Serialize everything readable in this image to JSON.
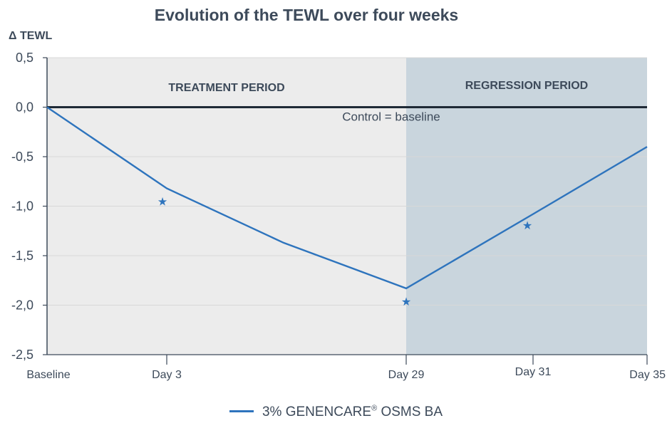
{
  "chart_data": {
    "type": "line",
    "title": "Evolution of the TEWL over four weeks",
    "ylabel": "Δ TEWL",
    "xlabel": "",
    "ylim": [
      -2.5,
      0.5
    ],
    "yticks": [
      "0,5",
      "0,0",
      "-0,5",
      "-1,0",
      "-1,5",
      "-2,0",
      "-2,5"
    ],
    "ytick_values": [
      0.5,
      0.0,
      -0.5,
      -1.0,
      -1.5,
      -2.0,
      -2.5
    ],
    "xticks": [
      {
        "label": "Baseline",
        "day": 0
      },
      {
        "label": "Day 3",
        "day": 3
      },
      {
        "label": "Day 29",
        "day": 29
      },
      {
        "label": "Day 31",
        "day": 31
      },
      {
        "label": "Day 35",
        "day": 35
      }
    ],
    "regions": [
      {
        "label": "TREATMENT PERIOD",
        "from_label": "Baseline",
        "to_label": "Day 29",
        "color": "#ececec"
      },
      {
        "label": "REGRESSION PERIOD",
        "from_label": "Day 29",
        "to_label": "Day 35",
        "color": "#c9d5dd"
      }
    ],
    "reference_line": {
      "label": "Control = baseline",
      "y": 0.0
    },
    "series": [
      {
        "name": "3% GENENCARE® OSMS BA",
        "color": "#2e74bd",
        "x_pos": [
          0,
          0.99,
          3.35,
          5.1,
          6.15,
          7.1
        ],
        "y": [
          0.0,
          -0.82,
          -1.37,
          -1.83,
          -1.08,
          -0.4
        ]
      }
    ],
    "significance_markers": [
      {
        "x_pos": 0.99,
        "y": -0.95,
        "symbol": "★"
      },
      {
        "x_pos": 3.0,
        "y": -1.96,
        "symbol": "★"
      },
      {
        "x_pos": 4.0,
        "y": -1.19,
        "symbol": "★"
      }
    ],
    "legend_position": "bottom",
    "grid": true
  },
  "legend": {
    "name": "3% GENENCARE",
    "reg": "®",
    "rest": " OSMS BA"
  }
}
